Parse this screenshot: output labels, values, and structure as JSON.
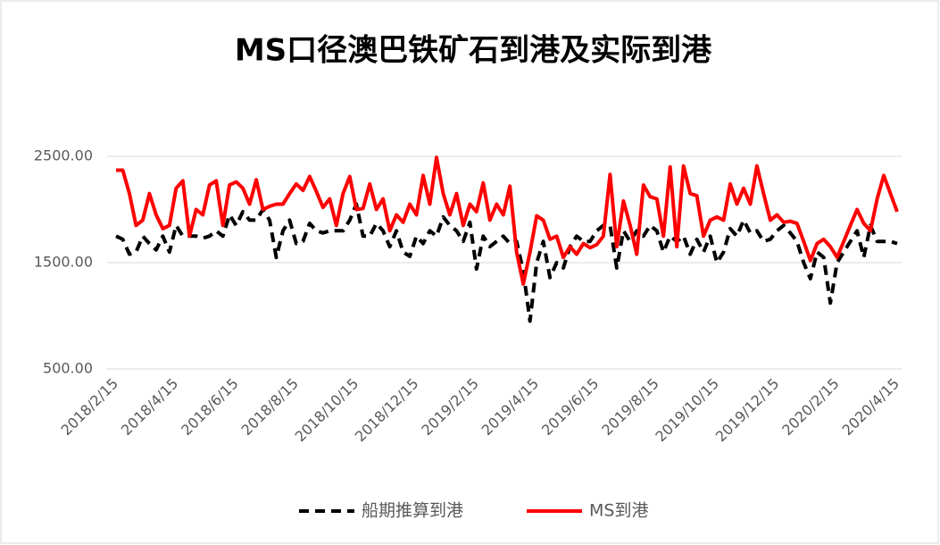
{
  "chart_data": {
    "type": "line",
    "title": "MS口径澳巴铁矿石到港及实际到港",
    "categories": [
      "2018/2/15",
      null,
      null,
      null,
      null,
      null,
      null,
      null,
      null,
      "2018/4/15",
      null,
      null,
      null,
      null,
      null,
      null,
      null,
      null,
      "2018/6/15",
      null,
      null,
      null,
      null,
      null,
      null,
      null,
      null,
      "2018/8/15",
      null,
      null,
      null,
      null,
      null,
      null,
      null,
      null,
      "2018/10/15",
      null,
      null,
      null,
      null,
      null,
      null,
      null,
      null,
      "2018/12/15",
      null,
      null,
      null,
      null,
      null,
      null,
      null,
      null,
      "2019/2/15",
      null,
      null,
      null,
      null,
      null,
      null,
      null,
      null,
      "2019/4/15",
      null,
      null,
      null,
      null,
      null,
      null,
      null,
      null,
      "2019/6/15",
      null,
      null,
      null,
      null,
      null,
      null,
      null,
      null,
      "2019/8/15",
      null,
      null,
      null,
      null,
      null,
      null,
      null,
      null,
      "2019/10/15",
      null,
      null,
      null,
      null,
      null,
      null,
      null,
      null,
      "2019/12/15",
      null,
      null,
      null,
      null,
      null,
      null,
      null,
      null,
      "2020/2/15",
      null,
      null,
      null,
      null,
      null,
      null,
      null,
      null,
      "2020/4/15"
    ],
    "series": [
      {
        "name": "船期推算到港",
        "color": "#000000",
        "dash": true,
        "values": [
          1750,
          1720,
          1580,
          1600,
          1750,
          1680,
          1620,
          1750,
          1600,
          1850,
          1750,
          1750,
          1750,
          1730,
          1750,
          1800,
          1750,
          1950,
          1850,
          1980,
          1900,
          1900,
          2000,
          1900,
          1550,
          1800,
          1900,
          1680,
          1700,
          1870,
          1800,
          1780,
          1800,
          1800,
          1800,
          1900,
          2050,
          1750,
          1750,
          1870,
          1800,
          1650,
          1800,
          1600,
          1560,
          1750,
          1680,
          1800,
          1750,
          1930,
          1850,
          1800,
          1700,
          1880,
          1440,
          1750,
          1650,
          1700,
          1750,
          1680,
          1700,
          1420,
          950,
          1500,
          1700,
          1360,
          1500,
          1450,
          1650,
          1750,
          1700,
          1700,
          1800,
          1850,
          1850,
          1450,
          1800,
          1700,
          1800,
          1750,
          1850,
          1800,
          1600,
          1750,
          1700,
          1750,
          1580,
          1720,
          1600,
          1750,
          1500,
          1600,
          1820,
          1750,
          1900,
          1780,
          1800,
          1700,
          1720,
          1800,
          1850,
          1780,
          1700,
          1500,
          1350,
          1600,
          1550,
          1120,
          1500,
          1600,
          1700,
          1800,
          1550,
          1850,
          1700,
          1700,
          1700,
          1680
        ]
      },
      {
        "name": "MS到港",
        "color": "#ff0000",
        "dash": false,
        "values": [
          2370,
          2370,
          2150,
          1850,
          1900,
          2150,
          1950,
          1820,
          1850,
          2200,
          2270,
          1750,
          2000,
          1950,
          2230,
          2270,
          1850,
          2230,
          2260,
          2200,
          2050,
          2280,
          2000,
          2030,
          2050,
          2050,
          2150,
          2240,
          2180,
          2310,
          2170,
          2020,
          2100,
          1850,
          2150,
          2310,
          2000,
          2010,
          2240,
          2000,
          2100,
          1800,
          1950,
          1880,
          2050,
          1950,
          2320,
          2050,
          2490,
          2150,
          1950,
          2150,
          1850,
          2050,
          1980,
          2250,
          1900,
          2050,
          1950,
          2220,
          1600,
          1300,
          1600,
          1940,
          1900,
          1720,
          1750,
          1550,
          1650,
          1580,
          1680,
          1640,
          1670,
          1750,
          2330,
          1650,
          2080,
          1850,
          1580,
          2230,
          2120,
          2100,
          1750,
          2400,
          1650,
          2410,
          2150,
          2130,
          1750,
          1900,
          1930,
          1900,
          2240,
          2050,
          2200,
          2050,
          2410,
          2150,
          1900,
          1950,
          1880,
          1890,
          1870,
          1700,
          1520,
          1680,
          1720,
          1650,
          1550,
          1700,
          1850,
          2000,
          1870,
          1800,
          2100,
          2320,
          2150,
          1980
        ]
      }
    ],
    "ylim": [
      500,
      2500
    ],
    "yticks": [
      {
        "value": 500,
        "label": "500.00"
      },
      {
        "value": 1500,
        "label": "1500.00"
      },
      {
        "value": 2500,
        "label": "2500.00"
      }
    ],
    "grid": true,
    "legend": "bottom"
  }
}
